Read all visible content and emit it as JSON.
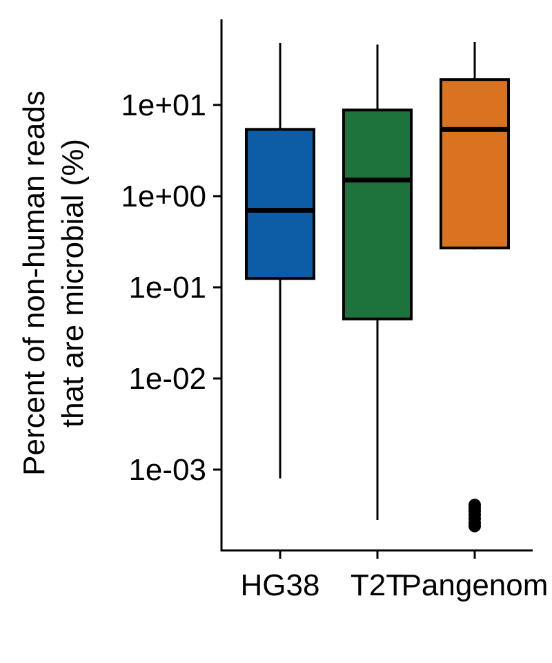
{
  "chart_data": {
    "type": "box",
    "title": "",
    "xlabel": "",
    "ylabel": {
      "line1": "Percent of non-human reads",
      "line2": "that are microbial (%)"
    },
    "y_scale": "log10",
    "ylim": [
      0.00018,
      80
    ],
    "y_ticks": [
      0.001,
      0.01,
      0.1,
      1,
      10
    ],
    "y_tick_labels": [
      "1e-03",
      "1e-02",
      "1e-01",
      "1e+00",
      "1e+01"
    ],
    "categories": [
      "HG38",
      "T2T",
      "Pangenome"
    ],
    "x_tick_labels": [
      "HG38",
      "T2T",
      "Pangenom"
    ],
    "boxes": [
      {
        "category": "HG38",
        "color": "#0c5da5",
        "whisker_low": 0.0008,
        "q1": 0.125,
        "median": 0.7,
        "q3": 5.4,
        "whisker_high": 48,
        "outliers": []
      },
      {
        "category": "T2T",
        "color": "#1e733c",
        "whisker_low": 0.00028,
        "q1": 0.045,
        "median": 1.5,
        "q3": 8.8,
        "whisker_high": 46,
        "outliers": []
      },
      {
        "category": "Pangenome",
        "color": "#d97320",
        "whisker_low": 0.26,
        "q1": 0.27,
        "median": 5.4,
        "q3": 19,
        "whisker_high": 49,
        "outliers": [
          0.00041,
          0.00038,
          0.00035,
          0.00032,
          0.00029,
          0.00026,
          0.00024
        ]
      }
    ],
    "grid": false,
    "legend": "none"
  }
}
